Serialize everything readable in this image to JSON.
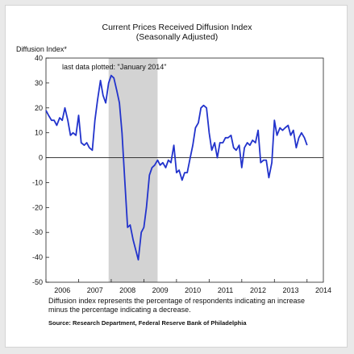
{
  "chart_data": {
    "type": "line",
    "title": "Current Prices Received Diffusion Index",
    "subtitle": "(Seasonally Adjusted)",
    "ylabel": "Diffusion Index*",
    "xlabel": "",
    "ylim": [
      -50,
      40
    ],
    "yticks": [
      40,
      30,
      20,
      10,
      0,
      -10,
      -20,
      -30,
      -40,
      -50
    ],
    "xlim": [
      2006,
      2014.5
    ],
    "xticks": [
      "2006",
      "2007",
      "2008",
      "2009",
      "2010",
      "2011",
      "2012",
      "2013",
      "2014"
    ],
    "annotation": "last data plotted: \"January 2014\"",
    "recession_shading": [
      2007.92,
      2009.42
    ],
    "zero_line": true,
    "grid": false,
    "legend": "none",
    "line_color": "#2233cc",
    "shade_color": "#d3d3d3",
    "series": [
      {
        "x": [
          2006.0,
          2006.08,
          2006.17,
          2006.25,
          2006.33,
          2006.42,
          2006.5,
          2006.58,
          2006.67,
          2006.75,
          2006.83,
          2006.92,
          2007.0,
          2007.08,
          2007.17,
          2007.25,
          2007.33,
          2007.42,
          2007.5,
          2007.58,
          2007.67,
          2007.75,
          2007.83,
          2007.92,
          2008.0,
          2008.08,
          2008.17,
          2008.25,
          2008.33,
          2008.42,
          2008.5,
          2008.58,
          2008.67,
          2008.75,
          2008.83,
          2008.92,
          2009.0,
          2009.08,
          2009.17,
          2009.25,
          2009.33,
          2009.42,
          2009.5,
          2009.58,
          2009.67,
          2009.75,
          2009.83,
          2009.92,
          2010.0,
          2010.08,
          2010.17,
          2010.25,
          2010.33,
          2010.42,
          2010.5,
          2010.58,
          2010.67,
          2010.75,
          2010.83,
          2010.92,
          2011.0,
          2011.08,
          2011.17,
          2011.25,
          2011.33,
          2011.42,
          2011.5,
          2011.58,
          2011.67,
          2011.75,
          2011.83,
          2011.92,
          2012.0,
          2012.08,
          2012.17,
          2012.25,
          2012.33,
          2012.42,
          2012.5,
          2012.58,
          2012.67,
          2012.75,
          2012.83,
          2012.92,
          2013.0,
          2013.08,
          2013.17,
          2013.25,
          2013.33,
          2013.42,
          2013.5,
          2013.58,
          2013.67,
          2013.75,
          2013.83,
          2013.92,
          2014.0
        ],
        "values": [
          19,
          17,
          15,
          15,
          13,
          16,
          15,
          20,
          15,
          9,
          10,
          9,
          17,
          6,
          5,
          6,
          4,
          3,
          15,
          23,
          31,
          25,
          22,
          30,
          33,
          32,
          27,
          22,
          10,
          -10,
          -28,
          -27,
          -33,
          -37,
          -41,
          -30,
          -28,
          -20,
          -7,
          -4,
          -3,
          -1,
          -3,
          -2,
          -4,
          -1,
          -2,
          5,
          -6,
          -5,
          -9,
          -6,
          -6,
          0,
          5,
          12,
          14,
          20,
          21,
          20,
          10,
          3,
          6,
          0,
          6,
          6,
          8,
          8,
          9,
          4,
          3,
          5,
          -4,
          4,
          6,
          5,
          7,
          6,
          11,
          -2,
          -1,
          -1,
          -8,
          -2,
          15,
          9,
          12,
          11,
          12,
          13,
          9,
          11,
          4,
          8,
          10,
          8,
          5
        ]
      }
    ]
  }
}
